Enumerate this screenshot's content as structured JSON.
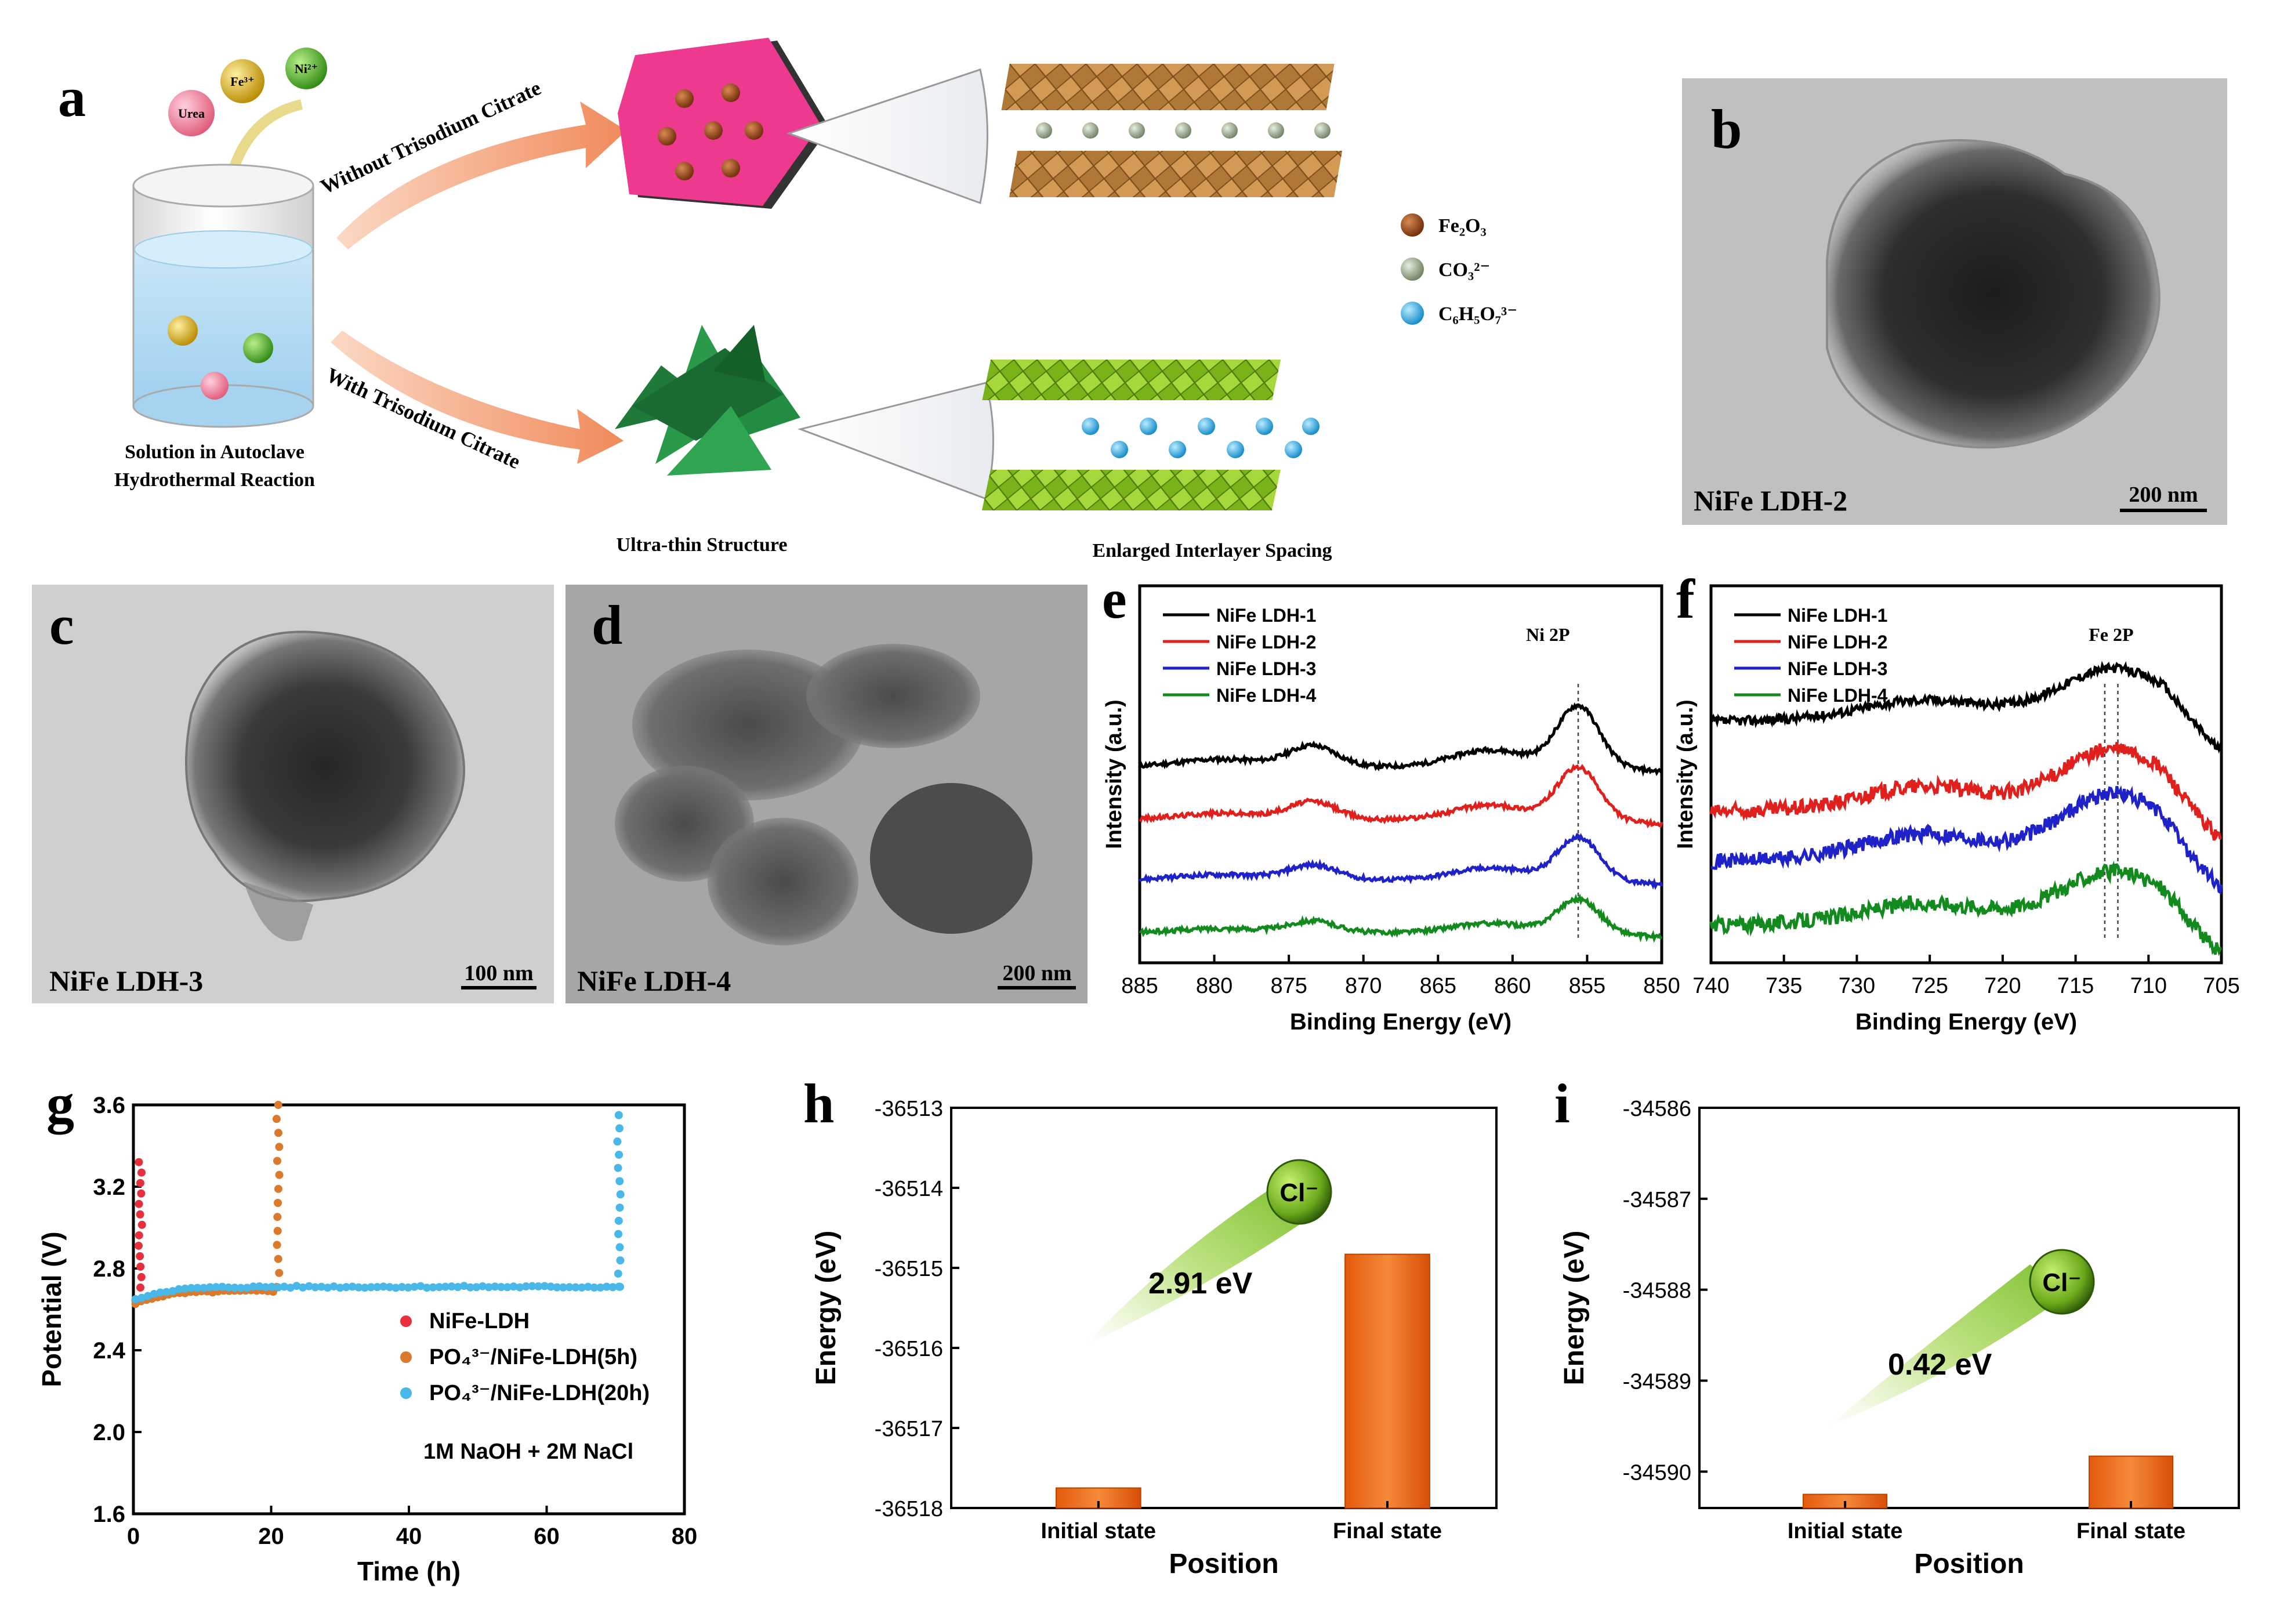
{
  "panel_letters": {
    "a": "a",
    "b": "b",
    "c": "c",
    "d": "d",
    "e": "e",
    "f": "f",
    "g": "g",
    "h": "h",
    "i": "i"
  },
  "panel_a": {
    "ions": {
      "fe": "Fe³⁺",
      "ni": "Ni²⁺",
      "urea": "Urea"
    },
    "autoclave_label_1": "Solution in Autoclave",
    "autoclave_label_2": "Hydrothermal Reaction",
    "arrow_top_label": "Without Trisodium Citrate",
    "arrow_bottom_label": "With Trisodium Citrate",
    "caption_ultrathin": "Ultra-thin Structure",
    "caption_interlayer": "Enlarged Interlayer Spacing",
    "legend": [
      {
        "label": "Fe₂O₃",
        "color": "#8b3a10"
      },
      {
        "label": "CO₃²⁻",
        "color": "#8aa07a"
      },
      {
        "label": "C₆H₅O₇³⁻",
        "color": "#22a8e0"
      }
    ]
  },
  "tem": {
    "b": {
      "label": "NiFe LDH-2",
      "scale": "200 nm"
    },
    "c": {
      "label": "NiFe LDH-3",
      "scale": "100 nm"
    },
    "d": {
      "label": "NiFe LDH-4",
      "scale": "200 nm"
    }
  },
  "chart_data": [
    {
      "id": "e",
      "type": "line",
      "title": "Ni 2P",
      "xlabel": "Binding Energy (eV)",
      "ylabel": "Intensity (a.u.)",
      "xlim": [
        885,
        850
      ],
      "x_ticks": [
        "885",
        "880",
        "875",
        "870",
        "865",
        "860",
        "855",
        "850"
      ],
      "reference_line": 855.6,
      "series": [
        {
          "name": "NiFe LDH-1",
          "color": "#000000",
          "offset": 0.52,
          "noise": 0.006
        },
        {
          "name": "NiFe LDH-2",
          "color": "#e0201c",
          "offset": 0.38,
          "noise": 0.006
        },
        {
          "name": "NiFe LDH-3",
          "color": "#1e22c8",
          "offset": 0.22,
          "noise": 0.006
        },
        {
          "name": "NiFe LDH-4",
          "color": "#138a1e",
          "offset": 0.08,
          "noise": 0.006
        }
      ]
    },
    {
      "id": "f",
      "type": "line",
      "title": "Fe 2P",
      "xlabel": "Binding Energy (eV)",
      "ylabel": "Intensity (a.u.)",
      "xlim": [
        740,
        705
      ],
      "x_ticks": [
        "740",
        "735",
        "730",
        "725",
        "720",
        "715",
        "710",
        "705"
      ],
      "reference_lines": [
        713.0,
        712.1
      ],
      "series": [
        {
          "name": "NiFe LDH-1",
          "color": "#000000",
          "offset": 0.64,
          "noise": 0.012
        },
        {
          "name": "NiFe LDH-2",
          "color": "#e0201c",
          "offset": 0.4,
          "noise": 0.02
        },
        {
          "name": "NiFe LDH-3",
          "color": "#1e22c8",
          "offset": 0.27,
          "noise": 0.02
        },
        {
          "name": "NiFe LDH-4",
          "color": "#138a1e",
          "offset": 0.1,
          "noise": 0.02
        }
      ]
    },
    {
      "id": "g",
      "type": "scatter",
      "xlabel": "Time (h)",
      "ylabel": "Potential (V)",
      "xlim": [
        0,
        80
      ],
      "ylim": [
        1.6,
        3.6
      ],
      "x_ticks": [
        "0",
        "20",
        "40",
        "60",
        "80"
      ],
      "y_ticks": [
        "1.6",
        "2.0",
        "2.4",
        "2.8",
        "3.2",
        "3.6"
      ],
      "annotation": "1M NaOH + 2M NaCl",
      "series": [
        {
          "name": "NiFe-LDH",
          "color": "#e8303c",
          "end_time": 1.0,
          "spike_top": 3.32
        },
        {
          "name": "PO₄³⁻/NiFe-LDH(5h)",
          "color": "#d97a2c",
          "end_time": 21.0,
          "spike_top": 3.6
        },
        {
          "name": "PO₄³⁻/NiFe-LDH(20h)",
          "color": "#49b8e8",
          "end_time": 70.5,
          "spike_top": 3.55
        }
      ]
    },
    {
      "id": "h",
      "type": "bar",
      "xlabel": "Position",
      "ylabel": "Energy (eV)",
      "categories": [
        "Initial state",
        "Final state"
      ],
      "values": [
        -36517.75,
        -36514.83
      ],
      "ylim": [
        -36518,
        -36513
      ],
      "y_ticks": [
        "-36513",
        "-36514",
        "-36515",
        "-36516",
        "-36517",
        "-36518"
      ],
      "annotation": "2.91 eV",
      "ion_label": "Cl⁻"
    },
    {
      "id": "i",
      "type": "bar",
      "xlabel": "Position",
      "ylabel": "Energy (eV)",
      "categories": [
        "Initial state",
        "Final state"
      ],
      "values": [
        -34590.25,
        -34589.83
      ],
      "ylim": [
        -34590.4,
        -34586
      ],
      "y_ticks": [
        "-34586",
        "-34587",
        "-34588",
        "-34589",
        "-34590"
      ],
      "annotation": "0.42 eV",
      "ion_label": "Cl⁻"
    }
  ]
}
